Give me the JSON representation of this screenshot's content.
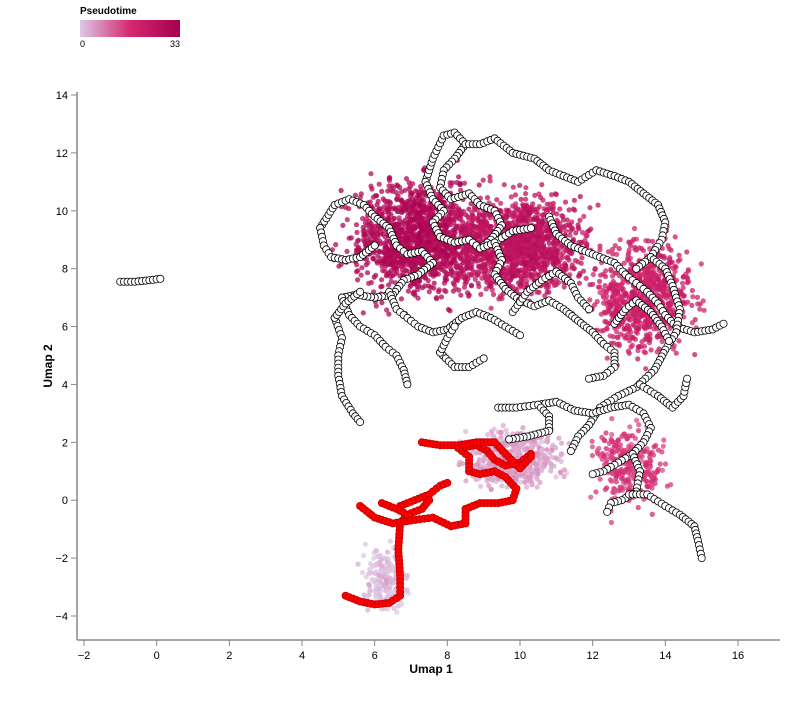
{
  "chart_data": {
    "type": "scatter",
    "title": "",
    "xlabel": "Umap 1",
    "ylabel": "Umap 2",
    "xlim": [
      -2.0,
      17.2
    ],
    "ylim": [
      -4.8,
      14.2
    ],
    "x_ticks": [
      -2,
      0,
      2,
      4,
      6,
      8,
      10,
      12,
      14,
      16
    ],
    "y_ticks": [
      -4,
      -2,
      0,
      2,
      4,
      6,
      8,
      10,
      12,
      14
    ],
    "grid": false,
    "legend": {
      "title": "Pseudotime",
      "min_label": "0",
      "max_label": "33",
      "min": 0,
      "max": 33,
      "placement": "top-left",
      "colors": [
        "#dcc8e6",
        "#d6286f",
        "#a5004f"
      ]
    },
    "cluster_density": [
      {
        "region": "upper-left dense cluster",
        "x": 7.2,
        "y": 9.0,
        "pseudotime": 29
      },
      {
        "region": "upper-middle cluster",
        "x": 10.0,
        "y": 8.8,
        "pseudotime": 25
      },
      {
        "region": "right lobe",
        "x": 13.4,
        "y": 7.0,
        "pseudotime": 20
      },
      {
        "region": "lower-middle light cluster",
        "x": 9.8,
        "y": 1.4,
        "pseudotime": 4
      },
      {
        "region": "lower-right tail",
        "x": 13.0,
        "y": 1.2,
        "pseudotime": 15
      },
      {
        "region": "bottom stem",
        "x": 6.3,
        "y": -2.8,
        "pseudotime": 1
      }
    ],
    "series": [
      {
        "name": "trajectory-root",
        "color": "#ff0000",
        "stroke": "#c00000",
        "paths": [
          [
            [
              5.2,
              -3.3
            ],
            [
              5.6,
              -3.5
            ],
            [
              6.0,
              -3.6
            ],
            [
              6.4,
              -3.55
            ],
            [
              6.7,
              -3.3
            ],
            [
              6.7,
              -2.6
            ],
            [
              6.65,
              -1.7
            ],
            [
              6.7,
              -0.8
            ],
            [
              6.9,
              -0.5
            ]
          ],
          [
            [
              5.6,
              -0.2
            ],
            [
              6.0,
              -0.6
            ],
            [
              6.5,
              -0.8
            ],
            [
              7.0,
              -0.7
            ],
            [
              7.6,
              -0.6
            ],
            [
              8.1,
              -0.9
            ],
            [
              8.5,
              -0.8
            ],
            [
              8.5,
              -0.3
            ],
            [
              8.9,
              -0.1
            ],
            [
              9.4,
              -0.1
            ],
            [
              9.8,
              0.0
            ],
            [
              9.9,
              0.4
            ],
            [
              9.6,
              0.8
            ],
            [
              9.3,
              1.0
            ],
            [
              8.9,
              0.9
            ],
            [
              8.6,
              1.0
            ],
            [
              8.6,
              1.5
            ],
            [
              8.3,
              1.8
            ],
            [
              8.8,
              1.9
            ],
            [
              9.1,
              1.7
            ],
            [
              9.3,
              1.4
            ],
            [
              9.6,
              1.2
            ],
            [
              10.0,
              1.3
            ],
            [
              10.3,
              1.6
            ]
          ],
          [
            [
              7.3,
              2.0
            ],
            [
              7.8,
              1.9
            ],
            [
              8.3,
              1.9
            ],
            [
              8.8,
              2.0
            ],
            [
              9.3,
              2.0
            ],
            [
              9.6,
              1.6
            ],
            [
              10.0,
              1.1
            ],
            [
              10.3,
              1.5
            ]
          ],
          [
            [
              6.7,
              -0.2
            ],
            [
              7.1,
              0.0
            ],
            [
              7.5,
              0.2
            ],
            [
              7.8,
              0.5
            ],
            [
              8.0,
              0.6
            ]
          ],
          [
            [
              6.2,
              -0.1
            ],
            [
              6.6,
              -0.3
            ],
            [
              6.9,
              -0.5
            ],
            [
              7.3,
              -0.3
            ],
            [
              7.5,
              0.0
            ]
          ]
        ]
      },
      {
        "name": "trajectory",
        "color": "#ffffff",
        "stroke": "#000000",
        "paths": [
          [
            [
              -1.0,
              7.55
            ],
            [
              -0.6,
              7.55
            ],
            [
              -0.2,
              7.6
            ],
            [
              0.1,
              7.65
            ]
          ],
          [
            [
              7.4,
              11.0
            ],
            [
              7.6,
              11.8
            ],
            [
              7.9,
              12.6
            ],
            [
              8.2,
              12.7
            ],
            [
              8.5,
              12.3
            ],
            [
              8.2,
              11.8
            ],
            [
              7.9,
              11.4
            ],
            [
              7.8,
              10.8
            ],
            [
              8.1,
              10.4
            ],
            [
              8.6,
              10.6
            ],
            [
              8.9,
              10.2
            ],
            [
              9.3,
              10.0
            ],
            [
              9.5,
              9.5
            ],
            [
              9.2,
              9.0
            ],
            [
              8.9,
              8.7
            ]
          ],
          [
            [
              7.4,
              11.0
            ],
            [
              7.6,
              10.4
            ],
            [
              7.9,
              10.0
            ],
            [
              7.6,
              9.6
            ],
            [
              7.8,
              9.1
            ],
            [
              8.2,
              8.9
            ],
            [
              8.6,
              9.0
            ],
            [
              8.9,
              8.7
            ],
            [
              9.3,
              8.9
            ],
            [
              9.8,
              9.3
            ],
            [
              10.3,
              9.4
            ]
          ],
          [
            [
              8.5,
              12.3
            ],
            [
              8.9,
              12.3
            ],
            [
              9.3,
              12.5
            ],
            [
              9.8,
              12.0
            ],
            [
              10.4,
              11.8
            ],
            [
              10.8,
              11.4
            ],
            [
              11.2,
              11.2
            ],
            [
              11.6,
              11.0
            ],
            [
              12.1,
              11.4
            ],
            [
              12.6,
              11.2
            ],
            [
              13.0,
              11.0
            ],
            [
              13.4,
              10.6
            ],
            [
              13.8,
              10.2
            ],
            [
              14.0,
              9.6
            ],
            [
              13.9,
              9.0
            ],
            [
              13.6,
              8.4
            ],
            [
              13.2,
              8.0
            ]
          ],
          [
            [
              4.5,
              9.4
            ],
            [
              4.9,
              10.2
            ],
            [
              5.3,
              10.4
            ],
            [
              5.7,
              10.2
            ],
            [
              6.0,
              9.8
            ],
            [
              6.4,
              9.4
            ],
            [
              6.6,
              8.8
            ],
            [
              6.9,
              8.5
            ],
            [
              7.3,
              8.6
            ],
            [
              7.6,
              8.2
            ],
            [
              7.2,
              7.8
            ],
            [
              6.8,
              7.6
            ],
            [
              6.5,
              7.1
            ],
            [
              6.0,
              7.0
            ],
            [
              5.5,
              7.1
            ],
            [
              5.1,
              7.0
            ]
          ],
          [
            [
              4.5,
              9.4
            ],
            [
              4.6,
              8.8
            ],
            [
              4.8,
              8.4
            ],
            [
              5.2,
              8.3
            ],
            [
              5.6,
              8.4
            ],
            [
              6.0,
              8.8
            ]
          ],
          [
            [
              6.4,
              7.2
            ],
            [
              6.6,
              6.6
            ],
            [
              6.9,
              6.3
            ],
            [
              7.2,
              6.0
            ],
            [
              7.6,
              5.8
            ],
            [
              8.0,
              5.9
            ],
            [
              8.4,
              6.3
            ],
            [
              8.8,
              6.5
            ],
            [
              9.2,
              6.3
            ],
            [
              9.6,
              6.0
            ],
            [
              10.0,
              5.7
            ]
          ],
          [
            [
              5.1,
              7.0
            ],
            [
              5.3,
              6.4
            ],
            [
              5.6,
              6.0
            ],
            [
              6.0,
              5.7
            ],
            [
              6.3,
              5.3
            ],
            [
              6.6,
              5.0
            ],
            [
              6.8,
              4.5
            ],
            [
              6.9,
              4.0
            ]
          ],
          [
            [
              4.9,
              6.3
            ],
            [
              5.1,
              5.6
            ],
            [
              5.0,
              5.0
            ],
            [
              5.0,
              4.3
            ],
            [
              5.1,
              3.6
            ],
            [
              5.4,
              3.0
            ],
            [
              5.6,
              2.7
            ]
          ],
          [
            [
              4.9,
              6.3
            ],
            [
              5.2,
              6.8
            ],
            [
              5.6,
              7.2
            ]
          ],
          [
            [
              7.8,
              5.1
            ],
            [
              8.2,
              4.6
            ],
            [
              8.6,
              4.6
            ],
            [
              9.0,
              4.9
            ]
          ],
          [
            [
              7.8,
              5.1
            ],
            [
              8.0,
              5.6
            ],
            [
              8.2,
              6.0
            ]
          ],
          [
            [
              9.3,
              8.9
            ],
            [
              9.5,
              8.3
            ],
            [
              9.3,
              7.8
            ],
            [
              9.6,
              7.3
            ],
            [
              10.0,
              6.9
            ],
            [
              10.4,
              6.7
            ],
            [
              10.8,
              6.9
            ],
            [
              11.2,
              6.6
            ],
            [
              11.6,
              6.2
            ],
            [
              12.0,
              5.8
            ],
            [
              12.3,
              5.4
            ],
            [
              12.6,
              5.1
            ],
            [
              12.6,
              4.6
            ],
            [
              12.3,
              4.3
            ],
            [
              11.9,
              4.2
            ]
          ],
          [
            [
              10.8,
              9.8
            ],
            [
              11.0,
              9.2
            ],
            [
              11.4,
              8.8
            ],
            [
              11.8,
              8.6
            ],
            [
              12.2,
              8.4
            ],
            [
              12.6,
              8.2
            ],
            [
              12.9,
              7.8
            ],
            [
              13.2,
              7.5
            ],
            [
              13.5,
              7.2
            ],
            [
              13.8,
              6.8
            ],
            [
              14.0,
              6.4
            ],
            [
              14.3,
              6.0
            ],
            [
              14.8,
              5.8
            ],
            [
              15.3,
              5.9
            ],
            [
              15.6,
              6.1
            ]
          ],
          [
            [
              13.6,
              8.4
            ],
            [
              14.0,
              8.0
            ],
            [
              14.2,
              7.4
            ],
            [
              14.4,
              6.6
            ],
            [
              14.3,
              5.8
            ],
            [
              14.0,
              5.2
            ],
            [
              13.7,
              4.5
            ],
            [
              13.2,
              3.9
            ],
            [
              12.7,
              3.6
            ],
            [
              12.2,
              3.2
            ],
            [
              11.9,
              2.6
            ],
            [
              11.6,
              2.2
            ],
            [
              11.4,
              1.7
            ]
          ],
          [
            [
              9.8,
              6.5
            ],
            [
              10.2,
              7.2
            ],
            [
              10.6,
              7.6
            ],
            [
              11.0,
              7.9
            ],
            [
              11.4,
              7.5
            ],
            [
              11.6,
              7.0
            ],
            [
              11.9,
              6.6
            ]
          ],
          [
            [
              12.6,
              6.1
            ],
            [
              12.9,
              6.6
            ],
            [
              13.2,
              6.9
            ],
            [
              13.6,
              6.5
            ],
            [
              13.9,
              6.0
            ],
            [
              14.1,
              5.5
            ]
          ],
          [
            [
              10.5,
              3.3
            ],
            [
              11.0,
              3.4
            ],
            [
              11.5,
              3.1
            ],
            [
              12.0,
              3.0
            ],
            [
              12.5,
              3.2
            ],
            [
              13.0,
              3.3
            ],
            [
              13.4,
              3.0
            ],
            [
              13.6,
              2.5
            ],
            [
              13.4,
              2.0
            ],
            [
              13.1,
              1.6
            ],
            [
              12.7,
              1.3
            ],
            [
              12.3,
              1.0
            ],
            [
              12.0,
              0.9
            ]
          ],
          [
            [
              9.4,
              3.2
            ],
            [
              9.9,
              3.2
            ],
            [
              10.5,
              3.3
            ],
            [
              10.8,
              2.9
            ],
            [
              10.8,
              2.4
            ],
            [
              10.2,
              2.2
            ],
            [
              9.7,
              2.1
            ]
          ],
          [
            [
              13.1,
              1.6
            ],
            [
              13.3,
              1.0
            ],
            [
              13.2,
              0.3
            ],
            [
              12.8,
              0.0
            ],
            [
              12.5,
              -0.1
            ],
            [
              12.4,
              -0.4
            ]
          ],
          [
            [
              13.3,
              4.0
            ],
            [
              13.8,
              3.6
            ],
            [
              14.2,
              3.2
            ],
            [
              14.5,
              3.6
            ],
            [
              14.6,
              4.2
            ]
          ],
          [
            [
              13.0,
              0.2
            ],
            [
              13.5,
              0.2
            ],
            [
              14.0,
              -0.2
            ],
            [
              14.4,
              -0.5
            ],
            [
              14.8,
              -0.9
            ],
            [
              14.9,
              -1.4
            ],
            [
              15.0,
              -2.0
            ]
          ]
        ]
      }
    ]
  }
}
